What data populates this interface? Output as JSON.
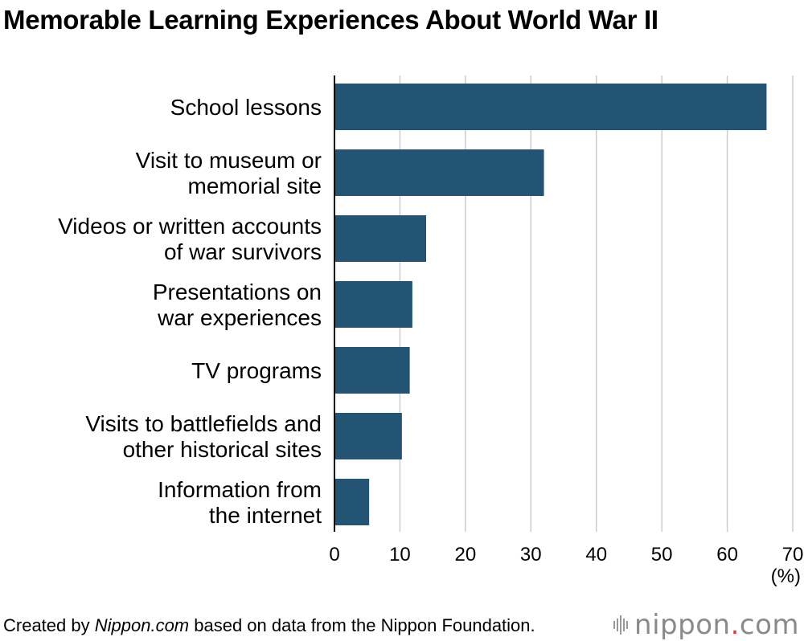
{
  "title": "Memorable Learning Experiences About World War II",
  "unit_label": "(%)",
  "footer": {
    "prefix": "Created by ",
    "source_site": "Nippon.com",
    "suffix": " based on data from the Nippon Foundation."
  },
  "logo": {
    "name": "nippon",
    "dot": ".",
    "tld": "com",
    "accent_color": "#e23a3a"
  },
  "chart_data": {
    "type": "bar",
    "orientation": "horizontal",
    "categories": [
      [
        "School lessons"
      ],
      [
        "Visit to museum or",
        "memorial site"
      ],
      [
        "Videos or written accounts",
        "of war survivors"
      ],
      [
        "Presentations on",
        "war experiences"
      ],
      [
        "TV programs"
      ],
      [
        "Visits to battlefields and",
        "other historical sites"
      ],
      [
        "Information from",
        "the internet"
      ]
    ],
    "values": [
      66,
      32,
      14,
      11.9,
      11.5,
      10.3,
      5.3
    ],
    "xlim": [
      0,
      70
    ],
    "xticks": [
      0,
      10,
      20,
      30,
      40,
      50,
      60,
      70
    ],
    "grid": "vertical",
    "bar_color": "#245474",
    "grid_color": "#cccccc"
  }
}
